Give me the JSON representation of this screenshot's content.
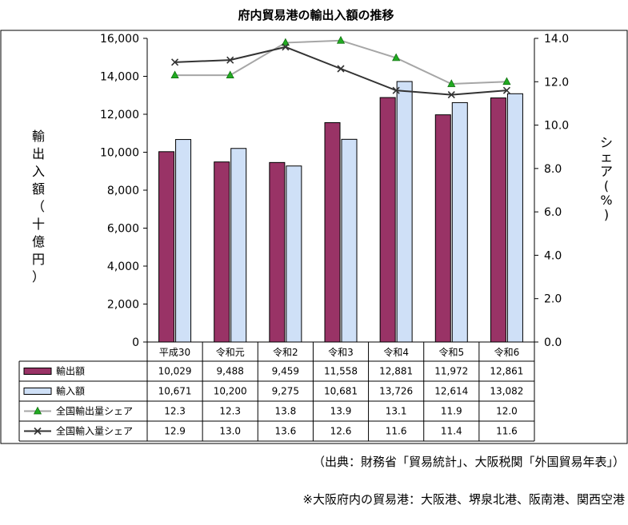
{
  "chart_data": {
    "type": "bar",
    "title": "府内貿易港の輸出入額の推移",
    "categories": [
      "平成30",
      "令和元",
      "令和2",
      "令和3",
      "令和4",
      "令和5",
      "令和6"
    ],
    "ylabel_chars": [
      "輸",
      "出",
      "入",
      "額",
      "（",
      "十",
      "億",
      "円",
      "）"
    ],
    "y2label_chars": [
      "シ",
      "ェ",
      "ア",
      "(",
      "%",
      ")"
    ],
    "ylim": [
      0,
      16000
    ],
    "y_ticks": [
      "0",
      "2,000",
      "4,000",
      "6,000",
      "8,000",
      "10,000",
      "12,000",
      "14,000",
      "16,000"
    ],
    "y2lim": [
      0,
      14
    ],
    "y2_ticks": [
      "0.0",
      "2.0",
      "4.0",
      "6.0",
      "8.0",
      "10.0",
      "12.0",
      "14.0"
    ],
    "grid": false,
    "series": [
      {
        "name": "輸出額",
        "kind": "bar",
        "color": "#993366",
        "values": [
          10029,
          9488,
          9459,
          11558,
          12881,
          11972,
          12861
        ],
        "labels": [
          "10,029",
          "9,488",
          "9,459",
          "11,558",
          "12,881",
          "11,972",
          "12,861"
        ]
      },
      {
        "name": "輸入額",
        "kind": "bar",
        "color": "#cfe0f7",
        "values": [
          10671,
          10200,
          9275,
          10681,
          13726,
          12614,
          13082
        ],
        "labels": [
          "10,671",
          "10,200",
          "9,275",
          "10,681",
          "13,726",
          "12,614",
          "13,082"
        ]
      },
      {
        "name": "全国輸出量シェア",
        "kind": "line",
        "axis": "right",
        "color": "#a6a6a6",
        "marker": "triangle",
        "marker_color": "#22aa22",
        "values": [
          12.3,
          12.3,
          13.8,
          13.9,
          13.1,
          11.9,
          12.0
        ],
        "labels": [
          "12.3",
          "12.3",
          "13.8",
          "13.9",
          "13.1",
          "11.9",
          "12.0"
        ]
      },
      {
        "name": "全国輸入量シェア",
        "kind": "line",
        "axis": "right",
        "color": "#333333",
        "marker": "x",
        "values": [
          12.9,
          13.0,
          13.6,
          12.6,
          11.6,
          11.4,
          11.6
        ],
        "labels": [
          "12.9",
          "13.0",
          "13.6",
          "12.6",
          "11.6",
          "11.4",
          "11.6"
        ]
      }
    ]
  },
  "notes": {
    "source": "（出典：財務省「貿易統計」、大阪税関「外国貿易年表」）",
    "ports": "※大阪府内の貿易港：大阪港、堺泉北港、阪南港、関西空港"
  }
}
